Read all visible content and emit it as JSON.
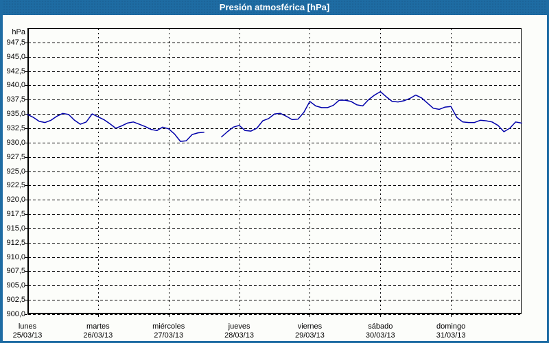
{
  "window": {
    "title": "Presión atmosférica [hPa]"
  },
  "colors": {
    "frame": "#1E6CA3",
    "title_text": "#FFFFFF",
    "background": "#FCFDFA",
    "grid": "#000000",
    "axis": "#000000",
    "line": "#0000AA",
    "text": "#000000"
  },
  "chart_data": {
    "type": "line",
    "title": "Presión atmosférica [hPa]",
    "ylabel": "hPa",
    "xlabel": "",
    "y_min": 900,
    "y_max": 950,
    "y_tick_step": 2.5,
    "y_tick_labels": [
      "947,5",
      "945,0",
      "942,5",
      "940,0",
      "937,5",
      "935,0",
      "932,5",
      "930,0",
      "927,5",
      "925,0",
      "922,5",
      "920,0",
      "917,5",
      "915,0",
      "912,5",
      "910,0",
      "907,5",
      "905,0",
      "902,5",
      "900,0"
    ],
    "x_days": [
      {
        "name": "lunes",
        "date": "25/03/13"
      },
      {
        "name": "martes",
        "date": "26/03/13"
      },
      {
        "name": "miércoles",
        "date": "27/03/13"
      },
      {
        "name": "jueves",
        "date": "28/03/13"
      },
      {
        "name": "viernes",
        "date": "29/03/13"
      },
      {
        "name": "sábado",
        "date": "30/03/13"
      },
      {
        "name": "domingo",
        "date": "31/03/13"
      }
    ],
    "sample_interval_hours": 2,
    "series": [
      {
        "name": "Presión atmosférica",
        "color": "#0000AA",
        "values_hpa": [
          934.9,
          934.4,
          933.7,
          933.5,
          933.9,
          934.6,
          935.1,
          934.9,
          933.9,
          933.2,
          933.6,
          935.0,
          934.5,
          934.0,
          933.3,
          932.5,
          932.9,
          933.4,
          933.6,
          933.2,
          932.8,
          932.3,
          932.1,
          932.7,
          932.4,
          931.5,
          930.2,
          930.3,
          931.4,
          931.7,
          931.8,
          null,
          null,
          931.0,
          931.9,
          932.7,
          933.0,
          932.1,
          932.0,
          932.5,
          933.8,
          934.2,
          935.0,
          935.1,
          934.6,
          934.0,
          934.1,
          935.3,
          937.2,
          936.4,
          936.1,
          936.1,
          936.5,
          937.4,
          937.4,
          937.2,
          936.6,
          936.4,
          937.5,
          938.3,
          938.9,
          938.0,
          937.2,
          937.1,
          937.3,
          937.7,
          938.3,
          937.8,
          936.9,
          936.0,
          935.8,
          936.2,
          936.3,
          934.4,
          933.6,
          933.5,
          933.5,
          933.9,
          933.8,
          933.6,
          933.0,
          931.9,
          932.5,
          933.6,
          933.4
        ]
      }
    ],
    "grid": "dashed",
    "legend": "none"
  }
}
